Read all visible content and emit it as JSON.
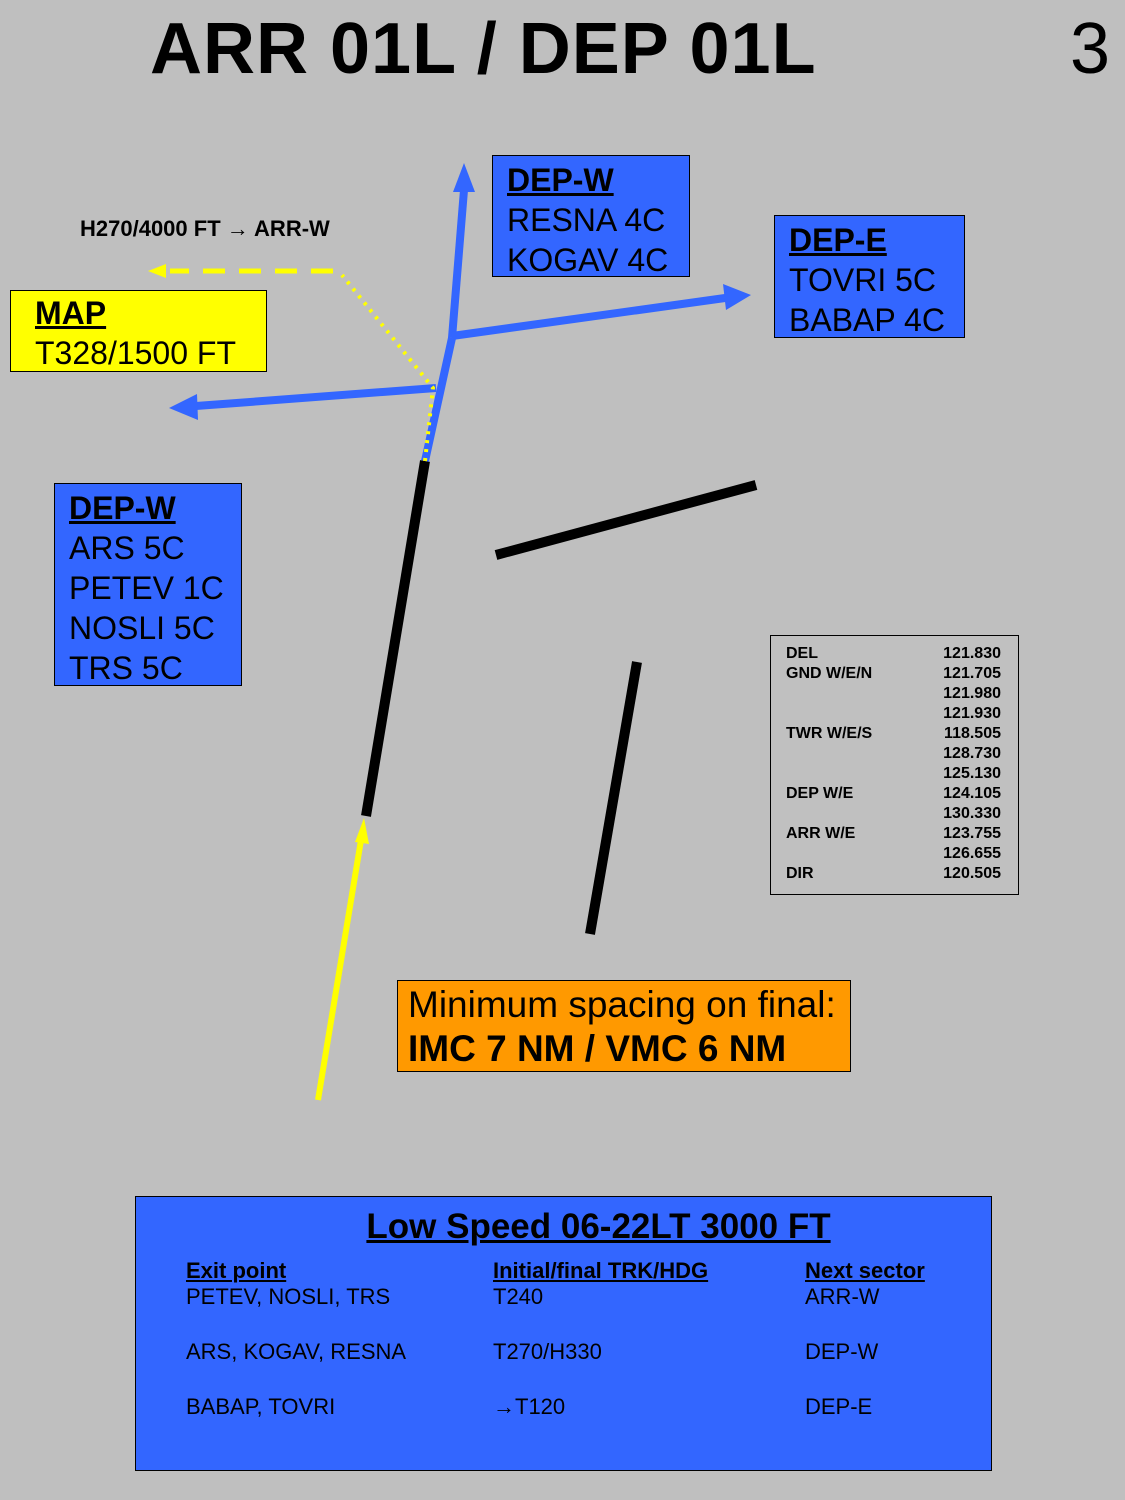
{
  "header": {
    "title": "ARR 01L / DEP 01L",
    "page_number": "3"
  },
  "colors": {
    "background": "#bfbfbf",
    "departure_route": "#3366ff",
    "arrival_route": "#ffff00",
    "missed_approach": "#ffff00",
    "runway": "#000000",
    "map_box": "#ffff00",
    "spacing_box": "#ff9900",
    "info_box": "#3366ff"
  },
  "hold": {
    "label": "H270/4000 FT → ARR-W"
  },
  "map_box": {
    "header": "MAP",
    "line1": "T328/1500 FT"
  },
  "dep_w_north": {
    "header": "DEP-W",
    "routes": [
      "RESNA 4C",
      "KOGAV 4C"
    ]
  },
  "dep_e": {
    "header": "DEP-E",
    "routes": [
      "TOVRI 5C",
      "BABAP 4C"
    ]
  },
  "dep_w_west": {
    "header": "DEP-W",
    "routes": [
      "ARS 5C",
      "PETEV 1C",
      "NOSLI 5C",
      "TRS 5C"
    ]
  },
  "frequencies": [
    {
      "label": "DEL",
      "value": "121.830"
    },
    {
      "label": "GND W/E/N",
      "value": "121.705"
    },
    {
      "label": "",
      "value": "121.980"
    },
    {
      "label": "",
      "value": "121.930"
    },
    {
      "label": "TWR W/E/S",
      "value": "118.505"
    },
    {
      "label": "",
      "value": "128.730"
    },
    {
      "label": "",
      "value": "125.130"
    },
    {
      "label": "DEP W/E",
      "value": "124.105"
    },
    {
      "label": "",
      "value": "130.330"
    },
    {
      "label": "ARR W/E",
      "value": "123.755"
    },
    {
      "label": "",
      "value": "126.655"
    },
    {
      "label": "DIR",
      "value": "120.505"
    }
  ],
  "spacing": {
    "line1": "Minimum spacing on final:",
    "line2": "IMC 7 NM / VMC 6 NM"
  },
  "low_speed": {
    "title": "Low Speed 06-22LT  3000 FT",
    "headers": {
      "exit": "Exit point",
      "track": "Initial/final TRK/HDG",
      "next": "Next sector"
    },
    "rows": [
      {
        "exit": "PETEV, NOSLI, TRS",
        "track": "T240",
        "next": "ARR-W"
      },
      {
        "exit": "ARS, KOGAV, RESNA",
        "track": "T270/H330",
        "next": "DEP-W"
      },
      {
        "exit": "BABAP, TOVRI",
        "track": "→T120",
        "next": "DEP-E"
      }
    ]
  }
}
